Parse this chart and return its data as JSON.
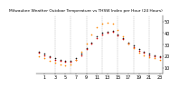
{
  "title": "Milwaukee Weather Outdoor Temperature vs THSW Index per Hour (24 Hours)",
  "hours": [
    0,
    1,
    2,
    3,
    4,
    5,
    6,
    7,
    8,
    9,
    10,
    11,
    12,
    13,
    14,
    15,
    16,
    17,
    18,
    19,
    20,
    21,
    22,
    23
  ],
  "temp": [
    23,
    21,
    19,
    17,
    16,
    15,
    15,
    17,
    21,
    26,
    31,
    36,
    39,
    40,
    41,
    38,
    35,
    31,
    28,
    25,
    23,
    21,
    20,
    19
  ],
  "thsw": [
    20,
    18,
    16,
    14,
    13,
    12,
    13,
    17,
    24,
    31,
    39,
    45,
    48,
    49,
    48,
    43,
    37,
    31,
    27,
    23,
    21,
    19,
    18,
    17
  ],
  "black": [
    24,
    22,
    20,
    18,
    17,
    16,
    16,
    18,
    22,
    27,
    32,
    37,
    40,
    41,
    42,
    39,
    36,
    32,
    29,
    26,
    24,
    22,
    21,
    20
  ],
  "temp_color": "#cc0000",
  "thsw_color": "#ff8800",
  "black_color": "#111111",
  "bg_color": "#ffffff",
  "grid_color": "#888888",
  "ylim": [
    5,
    55
  ],
  "ytick_values": [
    10,
    20,
    30,
    40,
    50
  ],
  "ytick_labels": [
    "10",
    "20",
    "30",
    "40",
    "50"
  ],
  "xtick_values": [
    1,
    3,
    5,
    7,
    9,
    11,
    13,
    15,
    17,
    19,
    21,
    23
  ],
  "vlines": [
    3,
    6,
    9,
    12,
    15,
    18,
    21
  ],
  "marker_size": 1.2,
  "title_fontsize": 3.2,
  "tick_fontsize": 3.5
}
